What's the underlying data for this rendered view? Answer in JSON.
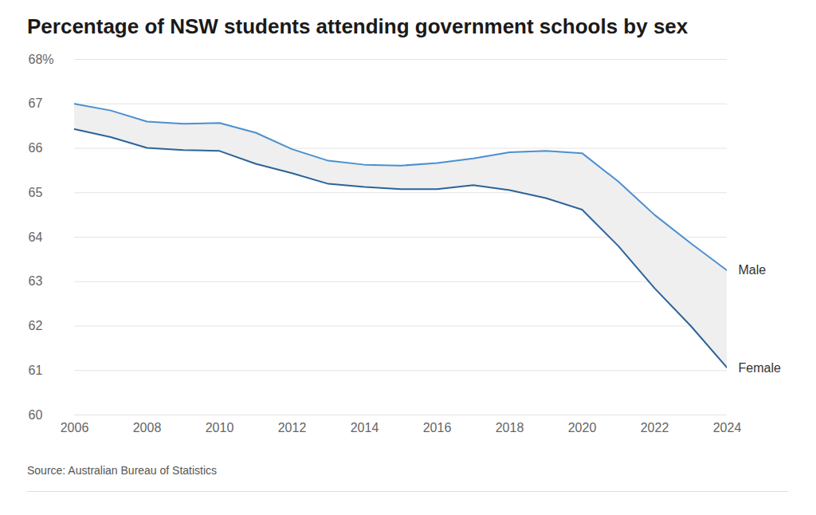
{
  "chart_data": {
    "type": "line",
    "title": "Percentage of NSW students attending government schools by sex",
    "source": "Source: Australian Bureau of Statistics",
    "x": [
      2006,
      2007,
      2008,
      2009,
      2010,
      2011,
      2012,
      2013,
      2014,
      2015,
      2016,
      2017,
      2018,
      2019,
      2020,
      2021,
      2022,
      2023,
      2024
    ],
    "series": [
      {
        "name": "Male",
        "color": "#4a90d0",
        "values": [
          67.0,
          66.85,
          66.6,
          66.55,
          66.57,
          66.35,
          65.98,
          65.72,
          65.63,
          65.61,
          65.67,
          65.77,
          65.91,
          65.94,
          65.89,
          65.25,
          64.5,
          63.86,
          63.25
        ]
      },
      {
        "name": "Female",
        "color": "#2b6399",
        "values": [
          66.43,
          66.25,
          66.01,
          65.96,
          65.94,
          65.65,
          65.44,
          65.2,
          65.13,
          65.08,
          65.08,
          65.17,
          65.06,
          64.88,
          64.62,
          63.8,
          62.85,
          62.0,
          61.06
        ]
      }
    ],
    "xlim": [
      2006,
      2024
    ],
    "xticks": [
      2006,
      2008,
      2010,
      2012,
      2014,
      2016,
      2018,
      2020,
      2022,
      2024
    ],
    "ylim": [
      60,
      68
    ],
    "yticks": [
      60,
      61,
      62,
      63,
      64,
      65,
      66,
      67,
      {
        "value": 68,
        "label": "68%"
      }
    ],
    "grid": true
  }
}
